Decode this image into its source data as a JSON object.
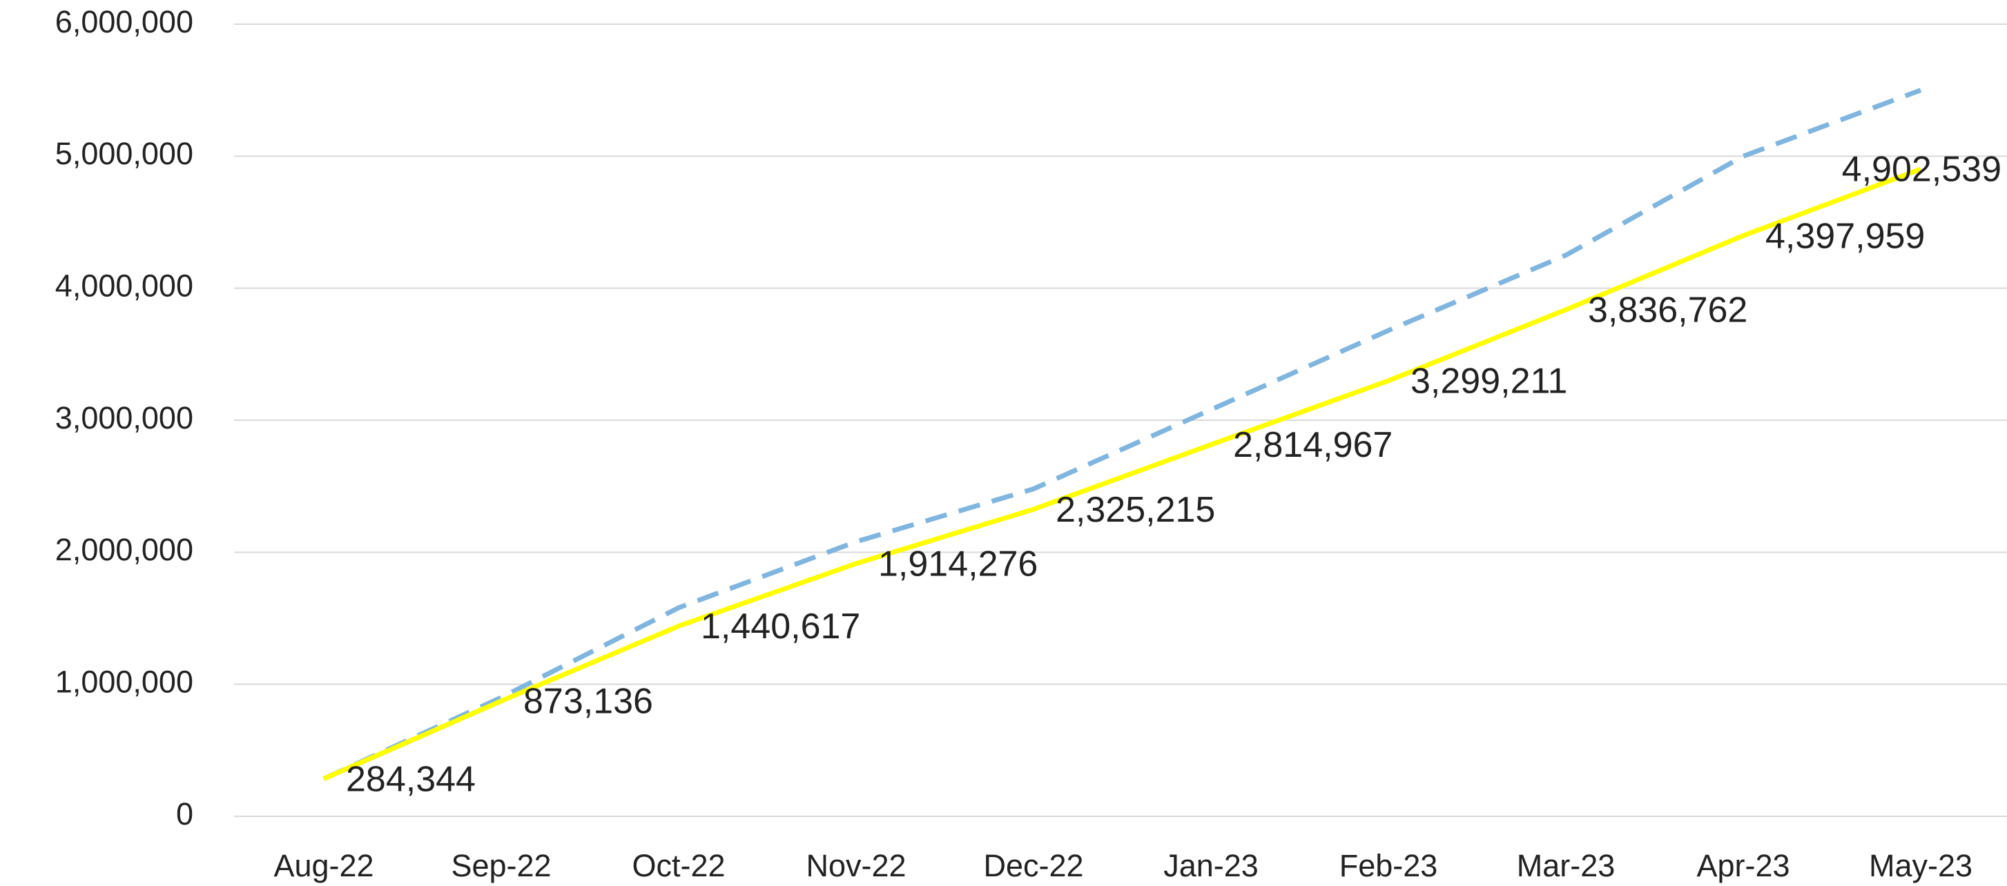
{
  "chart_data": {
    "type": "line",
    "categories": [
      "Aug-22",
      "Sep-22",
      "Oct-22",
      "Nov-22",
      "Dec-22",
      "Jan-23",
      "Feb-23",
      "Mar-23",
      "Apr-23",
      "May-23"
    ],
    "series": [
      {
        "color": "#70ad47",
        "values": [
          284344,
          873136,
          null,
          null,
          null,
          null,
          null,
          null,
          null,
          null
        ]
      },
      {
        "color": "#7fb5de",
        "dash": true,
        "values": [
          284344,
          900000,
          1580000,
          2080000,
          2480000,
          3080000,
          3680000,
          4250000,
          5000000,
          5500000
        ]
      },
      {
        "color": "#ffff00",
        "values": [
          284344,
          873136,
          1440617,
          1914276,
          2325215,
          2814967,
          3299211,
          3836762,
          4397959,
          4902539
        ],
        "value_labels": [
          "284,344",
          "873,136",
          "1,440,617",
          "1,914,276",
          "2,325,215",
          "2,814,967",
          "3,299,211",
          "3,836,762",
          "4,397,959",
          "4,902,539"
        ]
      }
    ],
    "ylim": [
      0,
      6000000
    ],
    "yticks": [
      0,
      {
        "value": 1000000,
        "label": "1,000,000"
      },
      {
        "value": 2000000,
        "label": "2,000,000"
      },
      {
        "value": 3000000,
        "label": "3,000,000"
      },
      {
        "value": 4000000,
        "label": "4,000,000"
      },
      {
        "value": 5000000,
        "label": "5,000,000"
      },
      {
        "value": 6000000,
        "label": "6,000,000"
      }
    ],
    "grid": true
  }
}
